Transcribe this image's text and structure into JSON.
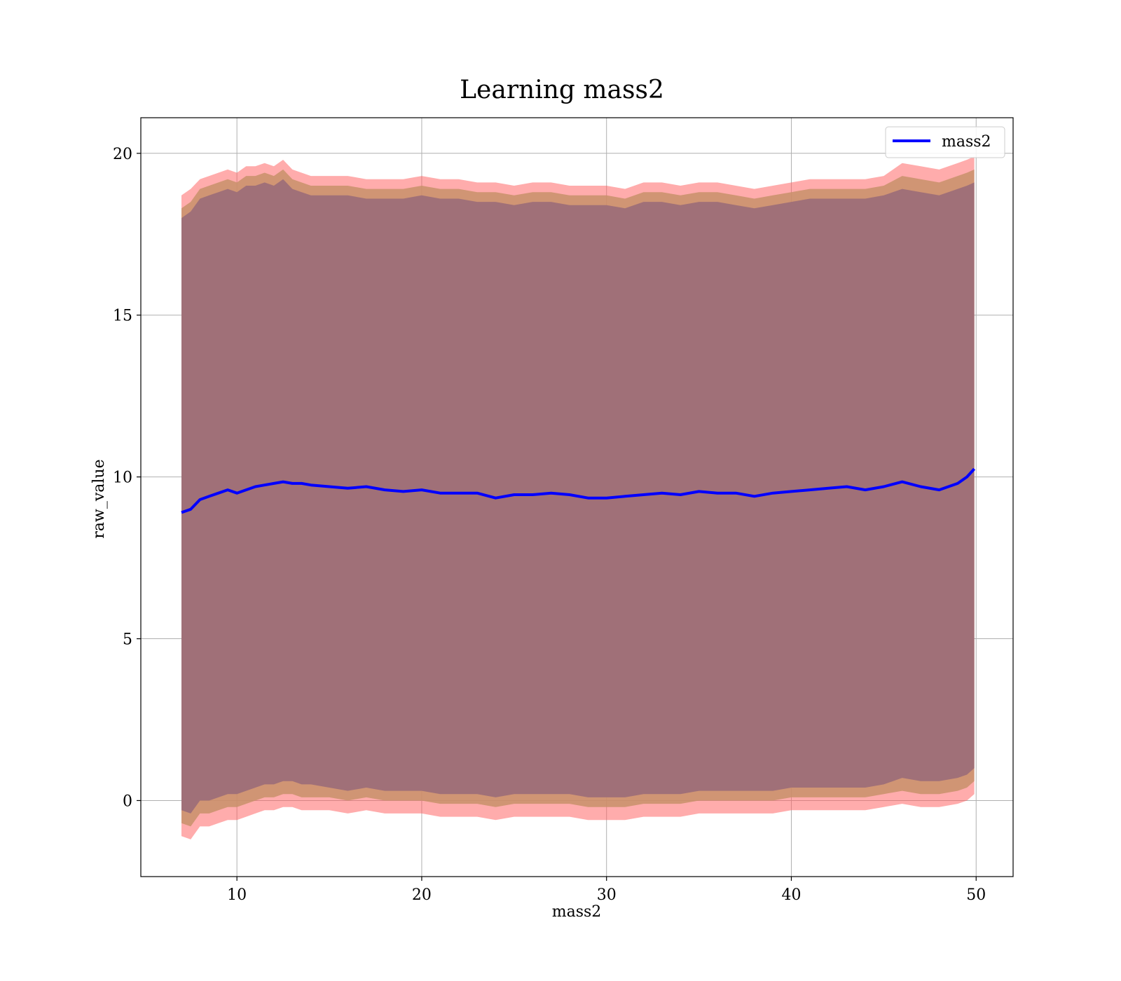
{
  "chart_data": {
    "type": "line",
    "title": "Learning mass2",
    "xlabel": "mass2",
    "ylabel": "raw_value",
    "xlim": [
      4.8,
      52.0
    ],
    "ylim": [
      -2.35,
      21.1
    ],
    "xticks": [
      10,
      20,
      30,
      40,
      50
    ],
    "yticks": [
      0,
      5,
      10,
      15,
      20
    ],
    "grid": true,
    "legend_position": "top-right",
    "colors": {
      "line": "#0000ff",
      "band_outer": "#ff5a5a",
      "band_middle": "#c8906a",
      "band_inner": "#a07078"
    },
    "series": [
      {
        "name": "mass2",
        "x": [
          7.0,
          7.5,
          8.0,
          8.5,
          9.0,
          9.5,
          10.0,
          10.5,
          11.0,
          11.5,
          12.0,
          12.5,
          13.0,
          13.5,
          14.0,
          15.0,
          16.0,
          17.0,
          18.0,
          19.0,
          20.0,
          21.0,
          22.0,
          23.0,
          24.0,
          25.0,
          26.0,
          27.0,
          28.0,
          29.0,
          30.0,
          31.0,
          32.0,
          33.0,
          34.0,
          35.0,
          36.0,
          37.0,
          38.0,
          39.0,
          40.0,
          41.0,
          42.0,
          43.0,
          44.0,
          45.0,
          46.0,
          47.0,
          48.0,
          49.0,
          49.5,
          49.9
        ],
        "values": [
          8.9,
          9.0,
          9.3,
          9.4,
          9.5,
          9.6,
          9.5,
          9.6,
          9.7,
          9.75,
          9.8,
          9.85,
          9.8,
          9.8,
          9.75,
          9.7,
          9.65,
          9.7,
          9.6,
          9.55,
          9.6,
          9.5,
          9.5,
          9.5,
          9.35,
          9.45,
          9.45,
          9.5,
          9.45,
          9.35,
          9.35,
          9.4,
          9.45,
          9.5,
          9.45,
          9.55,
          9.5,
          9.5,
          9.4,
          9.5,
          9.55,
          9.6,
          9.65,
          9.7,
          9.6,
          9.7,
          9.85,
          9.7,
          9.6,
          9.8,
          10.0,
          10.25
        ],
        "band_outer_upper": [
          18.7,
          18.9,
          19.2,
          19.3,
          19.4,
          19.5,
          19.4,
          19.6,
          19.6,
          19.7,
          19.6,
          19.8,
          19.5,
          19.4,
          19.3,
          19.3,
          19.3,
          19.2,
          19.2,
          19.2,
          19.3,
          19.2,
          19.2,
          19.1,
          19.1,
          19.0,
          19.1,
          19.1,
          19.0,
          19.0,
          19.0,
          18.9,
          19.1,
          19.1,
          19.0,
          19.1,
          19.1,
          19.0,
          18.9,
          19.0,
          19.1,
          19.2,
          19.2,
          19.2,
          19.2,
          19.3,
          19.7,
          19.6,
          19.5,
          19.7,
          19.8,
          19.9
        ],
        "band_outer_lower": [
          -1.1,
          -1.2,
          -0.8,
          -0.8,
          -0.7,
          -0.6,
          -0.6,
          -0.5,
          -0.4,
          -0.3,
          -0.3,
          -0.2,
          -0.2,
          -0.3,
          -0.3,
          -0.3,
          -0.4,
          -0.3,
          -0.4,
          -0.4,
          -0.4,
          -0.5,
          -0.5,
          -0.5,
          -0.6,
          -0.5,
          -0.5,
          -0.5,
          -0.5,
          -0.6,
          -0.6,
          -0.6,
          -0.5,
          -0.5,
          -0.5,
          -0.4,
          -0.4,
          -0.4,
          -0.4,
          -0.4,
          -0.3,
          -0.3,
          -0.3,
          -0.3,
          -0.3,
          -0.2,
          -0.1,
          -0.2,
          -0.2,
          -0.1,
          0.0,
          0.2
        ],
        "band_middle_upper": [
          18.3,
          18.5,
          18.9,
          19.0,
          19.1,
          19.2,
          19.1,
          19.3,
          19.3,
          19.4,
          19.3,
          19.5,
          19.2,
          19.1,
          19.0,
          19.0,
          19.0,
          18.9,
          18.9,
          18.9,
          19.0,
          18.9,
          18.9,
          18.8,
          18.8,
          18.7,
          18.8,
          18.8,
          18.7,
          18.7,
          18.7,
          18.6,
          18.8,
          18.8,
          18.7,
          18.8,
          18.8,
          18.7,
          18.6,
          18.7,
          18.8,
          18.9,
          18.9,
          18.9,
          18.9,
          19.0,
          19.3,
          19.2,
          19.1,
          19.3,
          19.4,
          19.5
        ],
        "band_middle_lower": [
          -0.7,
          -0.8,
          -0.4,
          -0.4,
          -0.3,
          -0.2,
          -0.2,
          -0.1,
          0.0,
          0.1,
          0.1,
          0.2,
          0.2,
          0.1,
          0.1,
          0.1,
          0.0,
          0.1,
          0.0,
          0.0,
          0.0,
          -0.1,
          -0.1,
          -0.1,
          -0.2,
          -0.1,
          -0.1,
          -0.1,
          -0.1,
          -0.2,
          -0.2,
          -0.2,
          -0.1,
          -0.1,
          -0.1,
          0.0,
          0.0,
          0.0,
          0.0,
          0.0,
          0.1,
          0.1,
          0.1,
          0.1,
          0.1,
          0.2,
          0.3,
          0.2,
          0.2,
          0.3,
          0.4,
          0.6
        ],
        "band_inner_upper": [
          18.0,
          18.2,
          18.6,
          18.7,
          18.8,
          18.9,
          18.8,
          19.0,
          19.0,
          19.1,
          19.0,
          19.2,
          18.9,
          18.8,
          18.7,
          18.7,
          18.7,
          18.6,
          18.6,
          18.6,
          18.7,
          18.6,
          18.6,
          18.5,
          18.5,
          18.4,
          18.5,
          18.5,
          18.4,
          18.4,
          18.4,
          18.3,
          18.5,
          18.5,
          18.4,
          18.5,
          18.5,
          18.4,
          18.3,
          18.4,
          18.5,
          18.6,
          18.6,
          18.6,
          18.6,
          18.7,
          18.9,
          18.8,
          18.7,
          18.9,
          19.0,
          19.1
        ],
        "band_inner_lower": [
          -0.3,
          -0.4,
          0.0,
          0.0,
          0.1,
          0.2,
          0.2,
          0.3,
          0.4,
          0.5,
          0.5,
          0.6,
          0.6,
          0.5,
          0.5,
          0.4,
          0.3,
          0.4,
          0.3,
          0.3,
          0.3,
          0.2,
          0.2,
          0.2,
          0.1,
          0.2,
          0.2,
          0.2,
          0.2,
          0.1,
          0.1,
          0.1,
          0.2,
          0.2,
          0.2,
          0.3,
          0.3,
          0.3,
          0.3,
          0.3,
          0.4,
          0.4,
          0.4,
          0.4,
          0.4,
          0.5,
          0.7,
          0.6,
          0.6,
          0.7,
          0.8,
          1.0
        ]
      }
    ]
  }
}
